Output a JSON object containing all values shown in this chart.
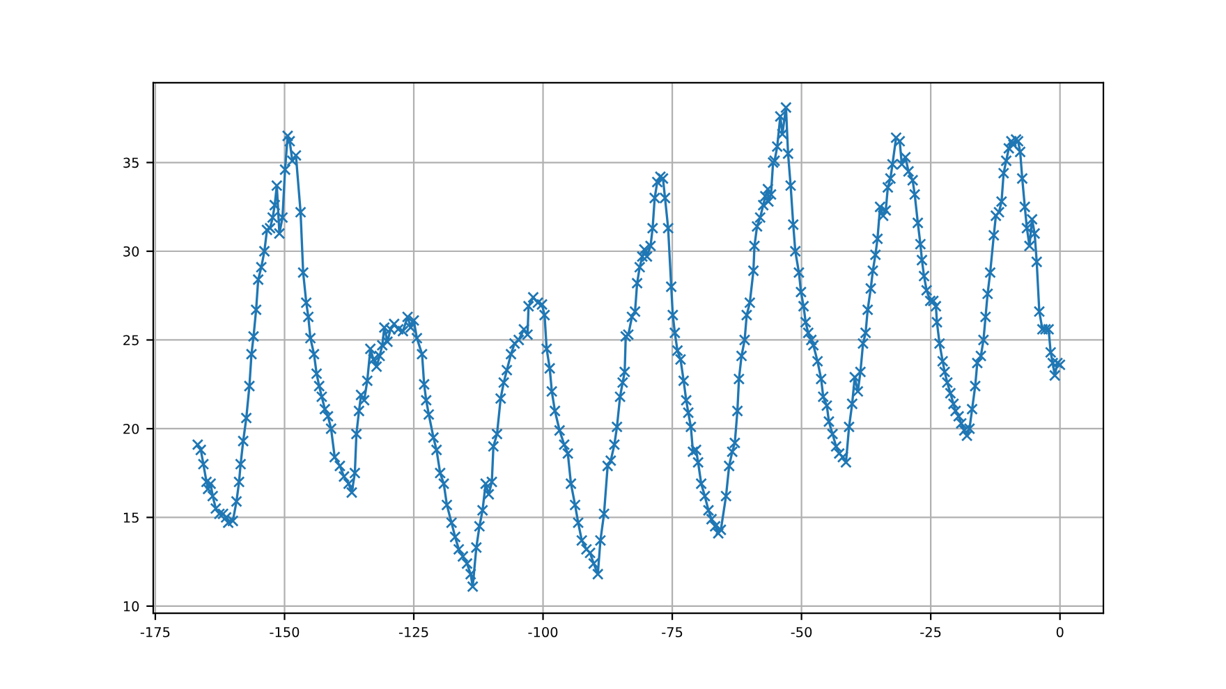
{
  "chart_data": {
    "type": "line",
    "xlim": [
      -175.4,
      8.4
    ],
    "ylim": [
      9.6,
      39.5
    ],
    "xticks": [
      -175,
      -150,
      -125,
      -100,
      -75,
      -50,
      -25,
      0
    ],
    "yticks": [
      10,
      15,
      20,
      25,
      30,
      35
    ],
    "grid": true,
    "marker": "cross",
    "line_style": "solid",
    "series": [
      {
        "color": "#1f77b4",
        "x": [
          -166.8,
          -166.2,
          -165.7,
          -165.1,
          -164.8,
          -164.3,
          -163.9,
          -163.3,
          -162.6,
          -161.9,
          -161.3,
          -160.9,
          -160.0,
          -159.3,
          -158.8,
          -158.5,
          -158.0,
          -157.4,
          -156.8,
          -156.4,
          -156.0,
          -155.5,
          -155.1,
          -154.5,
          -153.9,
          -153.4,
          -152.8,
          -152.3,
          -151.9,
          -151.5,
          -151.0,
          -150.4,
          -149.9,
          -149.4,
          -149.0,
          -148.5,
          -147.8,
          -146.9,
          -146.4,
          -145.8,
          -145.4,
          -145.0,
          -144.3,
          -143.8,
          -143.3,
          -142.8,
          -142.2,
          -141.6,
          -141.0,
          -140.3,
          -139.3,
          -138.5,
          -137.6,
          -137.0,
          -136.4,
          -136.1,
          -135.6,
          -135.2,
          -134.6,
          -134.0,
          -133.4,
          -132.8,
          -132.2,
          -131.6,
          -131.1,
          -130.7,
          -130.1,
          -129.5,
          -128.8,
          -128.0,
          -127.1,
          -126.2,
          -125.6,
          -125.0,
          -124.4,
          -123.4,
          -123.0,
          -122.6,
          -122.1,
          -121.2,
          -120.6,
          -119.9,
          -119.2,
          -118.6,
          -117.7,
          -117.0,
          -116.3,
          -115.5,
          -114.7,
          -114.0,
          -113.6,
          -112.9,
          -112.3,
          -111.7,
          -111.1,
          -110.5,
          -109.9,
          -109.6,
          -108.9,
          -108.2,
          -107.6,
          -107.0,
          -106.2,
          -105.5,
          -104.7,
          -103.7,
          -103.0,
          -102.8,
          -101.9,
          -101.0,
          -100.2,
          -99.7,
          -99.3,
          -98.7,
          -98.3,
          -97.7,
          -96.8,
          -95.9,
          -95.2,
          -94.6,
          -93.8,
          -93.2,
          -92.5,
          -91.6,
          -90.9,
          -90.2,
          -89.4,
          -88.9,
          -88.2,
          -87.5,
          -86.9,
          -86.2,
          -85.7,
          -85.1,
          -84.6,
          -84.2,
          -84.0,
          -83.5,
          -82.8,
          -82.2,
          -81.8,
          -81.3,
          -80.8,
          -80.4,
          -79.9,
          -79.2,
          -78.8,
          -78.4,
          -77.9,
          -77.3,
          -76.8,
          -76.4,
          -75.8,
          -75.2,
          -74.9,
          -74.5,
          -74.0,
          -73.4,
          -72.8,
          -72.3,
          -71.9,
          -71.4,
          -71.0,
          -70.4,
          -70.0,
          -69.4,
          -68.7,
          -68.0,
          -67.4,
          -66.7,
          -66.1,
          -65.6,
          -64.6,
          -64.0,
          -63.4,
          -62.9,
          -62.4,
          -62.1,
          -61.6,
          -61.0,
          -60.6,
          -60.0,
          -59.3,
          -59.1,
          -58.6,
          -58.0,
          -57.4,
          -57.0,
          -56.5,
          -56.4,
          -55.9,
          -55.5,
          -55.2,
          -54.7,
          -54.1,
          -53.7,
          -53.0,
          -52.6,
          -52.1,
          -51.6,
          -51.2,
          -50.5,
          -50.1,
          -49.6,
          -49.2,
          -48.7,
          -48.1,
          -47.7,
          -46.9,
          -46.2,
          -45.8,
          -45.1,
          -44.7,
          -44.0,
          -43.3,
          -42.7,
          -42.0,
          -41.4,
          -40.8,
          -40.2,
          -39.7,
          -39.1,
          -38.6,
          -38.1,
          -37.6,
          -37.2,
          -36.6,
          -36.2,
          -35.7,
          -35.3,
          -34.8,
          -34.2,
          -33.7,
          -33.3,
          -32.8,
          -32.4,
          -31.7,
          -31.0,
          -30.6,
          -29.9,
          -29.3,
          -28.5,
          -28.1,
          -27.5,
          -27.0,
          -26.7,
          -26.3,
          -25.8,
          -25.1,
          -24.5,
          -24.0,
          -23.8,
          -23.3,
          -22.7,
          -22.3,
          -21.8,
          -21.2,
          -20.6,
          -20.2,
          -19.6,
          -19.1,
          -18.5,
          -18.0,
          -17.5,
          -17.0,
          -16.4,
          -16.0,
          -15.3,
          -14.8,
          -14.4,
          -14.0,
          -13.5,
          -12.8,
          -12.4,
          -11.8,
          -11.3,
          -10.9,
          -10.4,
          -9.9,
          -9.4,
          -9.0,
          -8.5,
          -8.1,
          -7.7,
          -7.3,
          -6.8,
          -6.4,
          -5.9,
          -5.4,
          -4.9,
          -4.5,
          -4.0,
          -3.4,
          -2.8,
          -2.2,
          -1.8,
          -1.4,
          -1.0,
          -0.5,
          0.0
        ],
        "values": [
          19.1,
          18.8,
          18.0,
          17.0,
          16.6,
          16.9,
          16.2,
          15.5,
          15.2,
          15.2,
          15.0,
          14.7,
          14.8,
          15.9,
          17.0,
          18.0,
          19.3,
          20.6,
          22.4,
          24.2,
          25.2,
          26.7,
          28.4,
          29.1,
          30.0,
          31.2,
          31.3,
          31.9,
          32.6,
          33.7,
          31.0,
          31.9,
          34.6,
          36.5,
          36.2,
          35.1,
          35.4,
          32.2,
          28.8,
          27.1,
          26.3,
          25.1,
          24.2,
          23.1,
          22.4,
          21.8,
          21.1,
          20.7,
          20.0,
          18.4,
          17.9,
          17.3,
          16.9,
          16.4,
          17.5,
          19.7,
          21.0,
          21.9,
          21.6,
          22.7,
          24.5,
          23.9,
          23.5,
          24.1,
          24.7,
          25.7,
          24.9,
          25.6,
          25.9,
          25.6,
          25.5,
          26.3,
          25.7,
          26.1,
          25.1,
          24.2,
          22.5,
          21.6,
          20.8,
          19.5,
          18.8,
          17.5,
          16.9,
          15.7,
          14.7,
          13.9,
          13.2,
          12.8,
          12.4,
          11.8,
          11.1,
          13.3,
          14.5,
          15.4,
          16.9,
          16.3,
          17.0,
          19.0,
          19.7,
          21.7,
          22.6,
          23.3,
          24.2,
          24.8,
          25.0,
          25.6,
          25.3,
          26.9,
          27.4,
          27.1,
          27.0,
          26.4,
          24.5,
          23.4,
          22.1,
          21.0,
          19.9,
          19.1,
          18.6,
          16.9,
          15.7,
          14.7,
          13.7,
          13.2,
          13.0,
          12.4,
          11.8,
          13.7,
          15.2,
          17.9,
          18.2,
          19.1,
          20.1,
          21.8,
          22.6,
          23.2,
          25.2,
          25.3,
          26.3,
          26.6,
          28.2,
          29.1,
          29.7,
          30.1,
          29.7,
          30.3,
          31.3,
          33.0,
          33.9,
          34.2,
          34.1,
          33.0,
          31.3,
          28.0,
          26.4,
          25.4,
          24.4,
          23.9,
          22.7,
          21.6,
          20.9,
          20.1,
          18.7,
          18.8,
          18.1,
          16.9,
          16.2,
          15.4,
          14.9,
          14.5,
          14.1,
          14.3,
          16.2,
          17.9,
          18.7,
          19.2,
          21.0,
          22.8,
          24.1,
          25.0,
          26.4,
          27.1,
          28.9,
          30.3,
          31.4,
          31.9,
          32.6,
          33.1,
          33.5,
          32.8,
          33.2,
          35.0,
          35.1,
          35.9,
          37.6,
          36.6,
          38.1,
          35.5,
          33.7,
          31.5,
          30.0,
          28.8,
          27.7,
          26.9,
          26.0,
          25.4,
          25.0,
          24.7,
          23.8,
          22.8,
          21.8,
          21.3,
          20.4,
          19.7,
          19.0,
          18.6,
          18.4,
          18.1,
          20.1,
          21.4,
          22.9,
          22.1,
          23.2,
          24.8,
          25.4,
          26.7,
          27.9,
          28.9,
          29.8,
          30.7,
          32.5,
          32.0,
          32.3,
          33.6,
          34.1,
          34.9,
          36.4,
          36.2,
          34.9,
          35.3,
          34.5,
          34.0,
          33.2,
          31.6,
          30.4,
          29.5,
          28.6,
          27.8,
          27.2,
          27.2,
          26.9,
          26.0,
          24.8,
          23.8,
          23.2,
          22.6,
          22.0,
          21.4,
          21.0,
          20.7,
          20.3,
          19.9,
          19.6,
          20.0,
          21.1,
          22.4,
          23.7,
          24.1,
          25.0,
          26.3,
          27.6,
          28.8,
          30.9,
          32.0,
          32.2,
          32.8,
          34.4,
          35.1,
          35.8,
          36.2,
          36.0,
          36.3,
          36.2,
          35.6,
          34.1,
          32.5,
          31.3,
          30.3,
          31.8,
          31.0,
          29.4,
          26.6,
          25.6,
          25.6,
          25.6,
          24.3,
          23.7,
          23.0,
          23.7,
          23.6
        ]
      }
    ]
  }
}
